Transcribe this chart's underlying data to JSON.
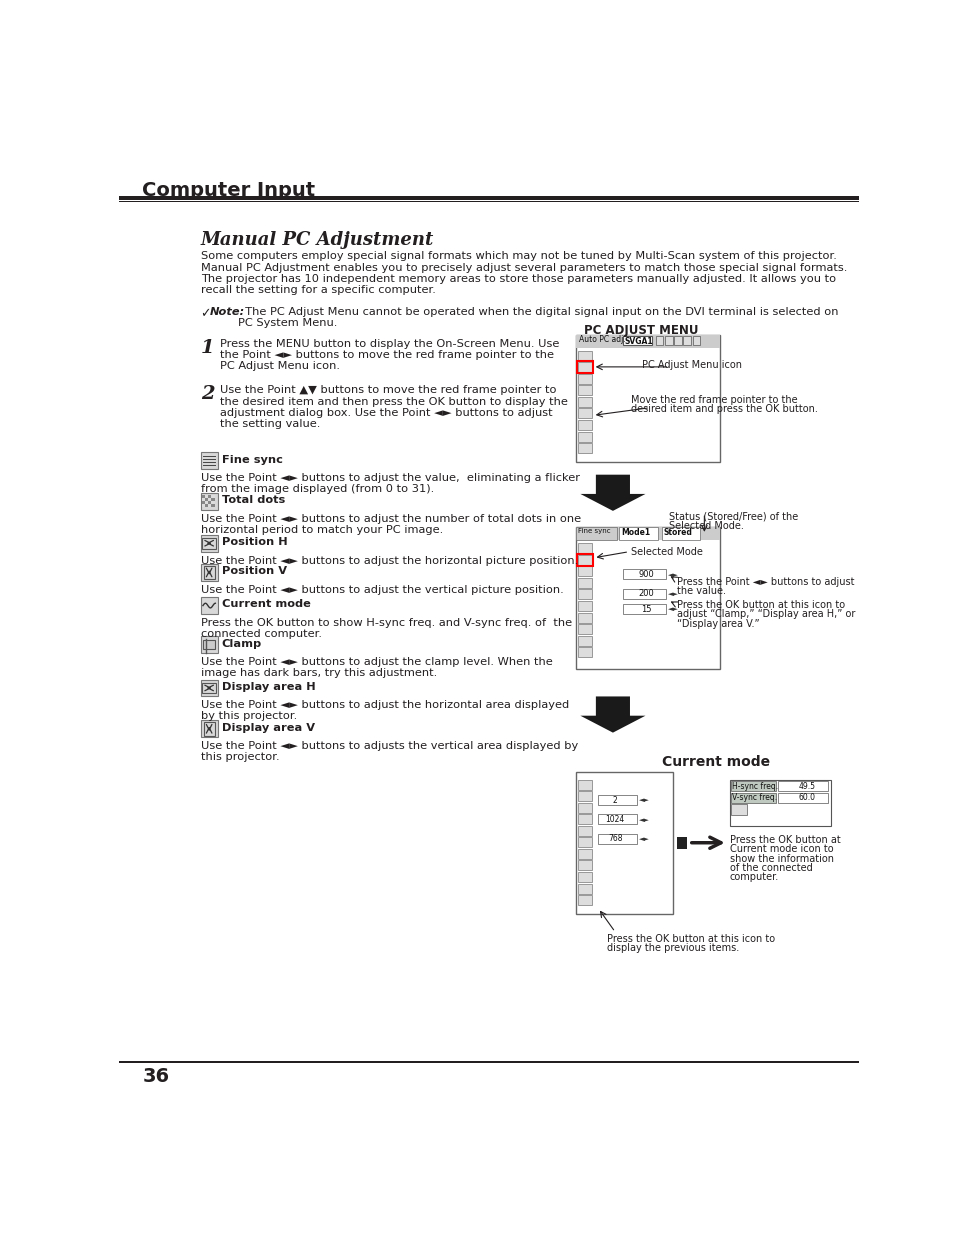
{
  "page_bg": "#ffffff",
  "header_title": "Computer Input",
  "section_title": "Manual PC Adjustment",
  "body_line1": "Some computers employ special signal formats which may not be tuned by Multi-Scan system of this projector.",
  "body_line2": "Manual PC Adjustment enables you to precisely adjust several parameters to match those special signal formats.",
  "body_line3": "The projector has 10 independent memory areas to store those parameters manually adjusted. It allows you to",
  "body_line4": "recall the setting for a specific computer.",
  "note_bold": "Note:",
  "note_text": "  The PC Adjust Menu cannot be operated when the digital signal input on the DVI terminal is selected on",
  "note_text2": "PC System Menu.",
  "step1_num": "1",
  "step1_line1": "Press the MENU button to display the On-Screen Menu. Use",
  "step1_line2": "the Point ◄► buttons to move the red frame pointer to the",
  "step1_line3": "PC Adjust Menu icon.",
  "step2_num": "2",
  "step2_line1": "Use the Point ▲▼ buttons to move the red frame pointer to",
  "step2_line2": "the desired item and then press the OK button to display the",
  "step2_line3": "adjustment dialog box. Use the Point ◄► buttons to adjust",
  "step2_line4": "the setting value.",
  "pc_adjust_menu_label": "PC ADJUST MENU",
  "lbl_pc_adj_icon": "PC Adjust Menu icon",
  "lbl_move_red": "Move the red frame pointer to the\ndesired item and press the OK button.",
  "lbl_status": "Status (Stored/Free) of the\nSelected Mode.",
  "lbl_selected_mode": "Selected Mode",
  "lbl_press_pt": "Press the Point ◄► buttons to adjust\nthe value.",
  "lbl_press_ok_clamp": "Press the OK button at this icon to\nadjust “Clamp,” “Display area H,” or\n“Display area V.”",
  "lbl_current_mode": "Current mode",
  "lbl_press_ok_current": "Press the OK button at\nCurrent mode icon to\nshow the information\nof the connected\ncomputer.",
  "lbl_press_ok_prev": "Press the OK button at this icon to\ndisplay the previous items.",
  "item1_name": "Fine sync",
  "item1_text1": "Use the Point ◄► buttons to adjust the value,  eliminating a flicker",
  "item1_text2": "from the image displayed (from 0 to 31).",
  "item2_name": "Total dots",
  "item2_text1": "Use the Point ◄► buttons to adjust the number of total dots in one",
  "item2_text2": "horizontal period to match your PC image.",
  "item3_name": "Position H",
  "item3_text1": "Use the Point ◄► buttons to adjust the horizontal picture position.",
  "item4_name": "Position V",
  "item4_text1": "Use the Point ◄► buttons to adjust the vertical picture position.",
  "item5_name": "Current mode",
  "item5_text1": "Press the OK button to show H-sync freq. and V-sync freq. of  the",
  "item5_text2": "connected computer.",
  "item6_name": "Clamp",
  "item6_text1": "Use the Point ◄► buttons to adjust the clamp level. When the",
  "item6_text2": "image has dark bars, try this adjustment.",
  "item7_name": "Display area H",
  "item7_text1": "Use the Point ◄► buttons to adjust the horizontal area displayed",
  "item7_text2": "by this projector.",
  "item8_name": "Display area V",
  "item8_text1": "Use the Point ◄► buttons to adjusts the vertical area displayed by",
  "item8_text2": "this projector.",
  "page_number": "36",
  "dark": "#231f20",
  "med_gray": "#888888",
  "lt_gray": "#e0e0e0",
  "icon_gray": "#d8d8d8",
  "sc_bg": "#f0f0f0",
  "sc_border": "#666666",
  "arrow_fill": "#1a1a1a"
}
